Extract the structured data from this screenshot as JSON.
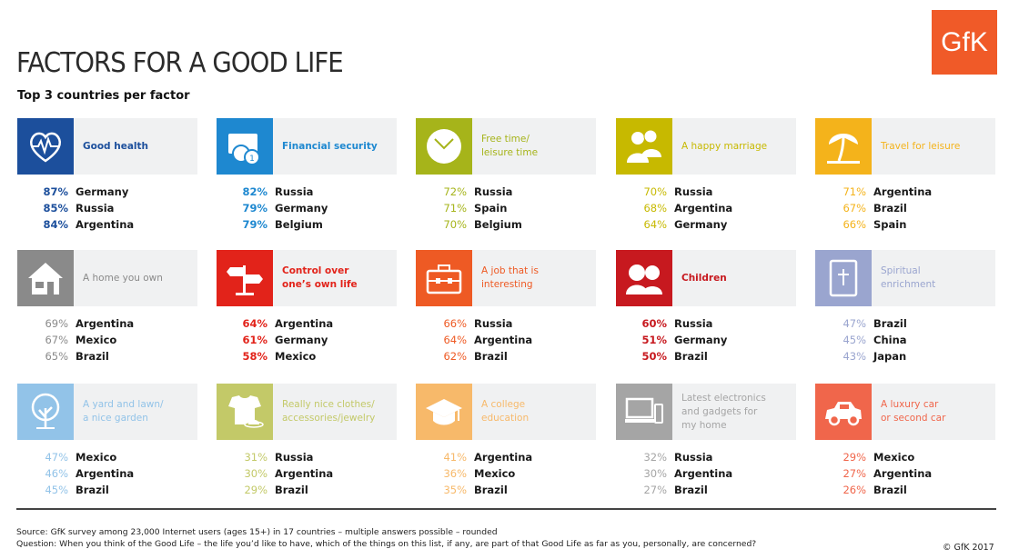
{
  "title": "FACTORS FOR A GOOD LIFE",
  "subtitle": "Top 3 countries per factor",
  "logo": "GfK",
  "cards": [
    {
      "label": "Good health",
      "color": "#1c4f9c",
      "icon": "heart-pulse-icon",
      "light": false,
      "rows": [
        {
          "pct": "87%",
          "country": "Germany"
        },
        {
          "pct": "85%",
          "country": "Russia"
        },
        {
          "pct": "84%",
          "country": "Argentina"
        }
      ]
    },
    {
      "label": "Financial security",
      "color": "#1e88d0",
      "icon": "money-icon",
      "light": false,
      "rows": [
        {
          "pct": "82%",
          "country": "Russia"
        },
        {
          "pct": "79%",
          "country": "Germany"
        },
        {
          "pct": "79%",
          "country": "Belgium"
        }
      ]
    },
    {
      "label": "Free time/\nleisure time",
      "color": "#a6b41a",
      "icon": "clock-icon",
      "light": true,
      "rows": [
        {
          "pct": "72%",
          "country": "Russia"
        },
        {
          "pct": "71%",
          "country": "Spain"
        },
        {
          "pct": "70%",
          "country": "Belgium"
        }
      ]
    },
    {
      "label": "A happy marriage",
      "color": "#c7b900",
      "icon": "couple-icon",
      "light": true,
      "rows": [
        {
          "pct": "70%",
          "country": "Russia"
        },
        {
          "pct": "68%",
          "country": "Argentina"
        },
        {
          "pct": "64%",
          "country": "Germany"
        }
      ]
    },
    {
      "label": "Travel for leisure",
      "color": "#f4b31b",
      "icon": "palm-tree-icon",
      "light": true,
      "rows": [
        {
          "pct": "71%",
          "country": "Argentina"
        },
        {
          "pct": "67%",
          "country": "Brazil"
        },
        {
          "pct": "66%",
          "country": "Spain"
        }
      ]
    },
    {
      "label": "A home you own",
      "color": "#8a8a8a",
      "icon": "house-icon",
      "light": true,
      "rows": [
        {
          "pct": "69%",
          "country": "Argentina"
        },
        {
          "pct": "67%",
          "country": "Mexico"
        },
        {
          "pct": "65%",
          "country": "Brazil"
        }
      ]
    },
    {
      "label": "Control over\none’s own life",
      "color": "#e2231a",
      "icon": "signpost-icon",
      "light": false,
      "rows": [
        {
          "pct": "64%",
          "country": "Argentina"
        },
        {
          "pct": "61%",
          "country": "Germany"
        },
        {
          "pct": "58%",
          "country": "Mexico"
        }
      ]
    },
    {
      "label": "A job that is\ninteresting",
      "color": "#ee5a24",
      "icon": "briefcase-icon",
      "light": true,
      "rows": [
        {
          "pct": "66%",
          "country": "Russia"
        },
        {
          "pct": "64%",
          "country": "Argentina"
        },
        {
          "pct": "62%",
          "country": "Brazil"
        }
      ]
    },
    {
      "label": "Children",
      "color": "#c7191f",
      "icon": "children-icon",
      "light": false,
      "rows": [
        {
          "pct": "60%",
          "country": "Russia"
        },
        {
          "pct": "51%",
          "country": "Germany"
        },
        {
          "pct": "50%",
          "country": "Brazil"
        }
      ]
    },
    {
      "label": "Spiritual\nenrichment",
      "color": "#9aa5cf",
      "icon": "bible-icon",
      "light": true,
      "rows": [
        {
          "pct": "47%",
          "country": "Brazil"
        },
        {
          "pct": "45%",
          "country": "China"
        },
        {
          "pct": "43%",
          "country": "Japan"
        }
      ]
    },
    {
      "label": "A yard and lawn/\na nice garden",
      "color": "#92c3e8",
      "icon": "tree-icon",
      "light": true,
      "rows": [
        {
          "pct": "47%",
          "country": "Mexico"
        },
        {
          "pct": "46%",
          "country": "Argentina"
        },
        {
          "pct": "45%",
          "country": "Brazil"
        }
      ]
    },
    {
      "label": "Really nice clothes/\naccessories/jewelry",
      "color": "#c3c968",
      "icon": "clothes-icon",
      "light": true,
      "rows": [
        {
          "pct": "31%",
          "country": "Russia"
        },
        {
          "pct": "30%",
          "country": "Argentina"
        },
        {
          "pct": "29%",
          "country": "Brazil"
        }
      ]
    },
    {
      "label": "A college\neducation",
      "color": "#f7b96a",
      "icon": "graduation-cap-icon",
      "light": true,
      "rows": [
        {
          "pct": "41%",
          "country": "Argentina"
        },
        {
          "pct": "36%",
          "country": "Mexico"
        },
        {
          "pct": "35%",
          "country": "Brazil"
        }
      ]
    },
    {
      "label": "Latest electronics\nand gadgets for\nmy home",
      "color": "#a5a5a5",
      "icon": "electronics-icon",
      "light": true,
      "rows": [
        {
          "pct": "32%",
          "country": "Russia"
        },
        {
          "pct": "30%",
          "country": "Argentina"
        },
        {
          "pct": "27%",
          "country": "Brazil"
        }
      ]
    },
    {
      "label": "A luxury car\nor second car",
      "color": "#f0664b",
      "icon": "car-icon",
      "light": true,
      "rows": [
        {
          "pct": "29%",
          "country": "Mexico"
        },
        {
          "pct": "27%",
          "country": "Argentina"
        },
        {
          "pct": "26%",
          "country": "Brazil"
        }
      ]
    }
  ],
  "footer": {
    "source": "Source: GfK survey among 23,000 Internet users (ages 15+) in 17 countries – multiple answers possible – rounded",
    "question": "Question: When you think of the Good Life – the life you’d like to have, which of the things on this list, if any, are part of that Good Life as far as you, personally, are concerned?",
    "copyright": "© GfK 2017"
  }
}
